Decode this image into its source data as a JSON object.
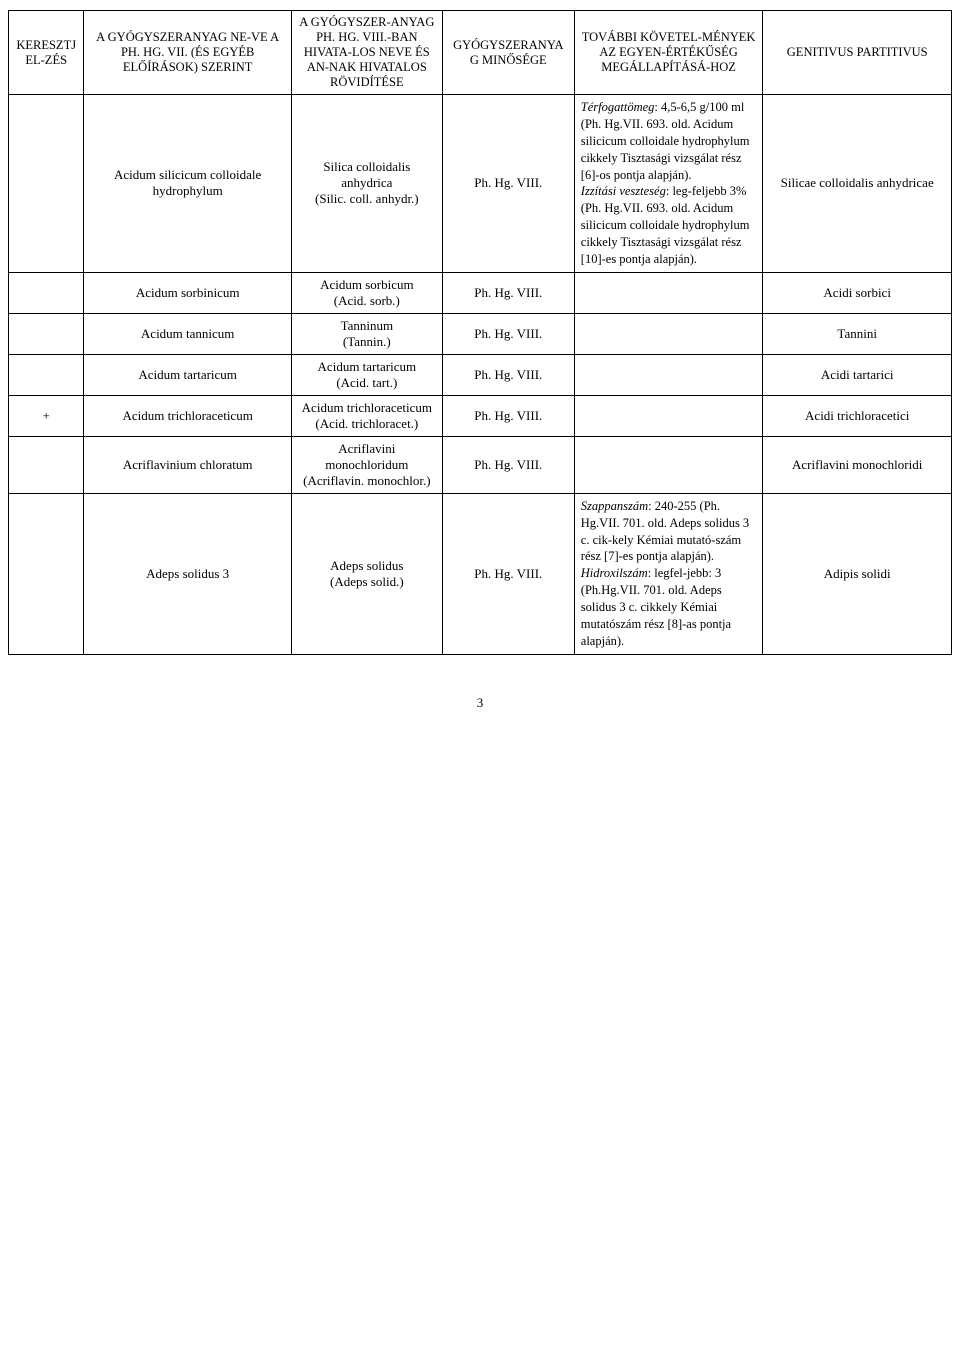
{
  "header": {
    "col1": "KERESZTJEL-ZÉS",
    "col2": "A GYÓGYSZERANYAG NE-VE A PH. HG. VII. (ÉS EGYÉB ELŐÍRÁSOK) SZERINT",
    "col3": "A GYÓGYSZER-ANYAG PH. HG. VIII.-BAN HIVATA-LOS NEVE ÉS AN-NAK HIVATALOS RÖVIDÍTÉSE",
    "col4": "GYÓGYSZERANYAG MINŐSÉGE",
    "col5": "TOVÁBBI KÖVETEL-MÉNYEK AZ EGYEN-ÉRTÉKŰSÉG MEGÁLLAPÍTÁSÁ-HOZ",
    "col6": "GENITIVUS PARTITIVUS"
  },
  "rows": [
    {
      "cross": "",
      "name": "Acidum silicicum colloidale hydrophylum",
      "abbrev": "Silica colloidalis anhydrica\n(Silic. coll. anhydr.)",
      "quality": "Ph. Hg. VIII.",
      "req_html": "<span class=\"italic\">Térfogattömeg</span>: 4,5-6,5 g/100 ml (Ph. Hg.VII. 693. old. Acidum silicicum colloidale hydrophylum cikkely Tisztasági vizsgálat rész [6]-os pontja alapján).<br><span class=\"italic\">Izzítási veszteség</span>: leg-feljebb 3% (Ph. Hg.VII. 693. old. Acidum silicicum colloidale hydrophylum cikkely Tisztasági vizsgálat rész [10]-es pontja alapján).",
      "gen": "Silicae colloidalis anhydricae"
    },
    {
      "cross": "",
      "name": "Acidum sorbinicum",
      "abbrev": "Acidum sorbicum\n(Acid. sorb.)",
      "quality": "Ph. Hg. VIII.",
      "req_html": "",
      "gen": "Acidi sorbici"
    },
    {
      "cross": "",
      "name": "Acidum tannicum",
      "abbrev": "Tanninum\n(Tannin.)",
      "quality": "Ph. Hg. VIII.",
      "req_html": "",
      "gen": "Tannini"
    },
    {
      "cross": "",
      "name": "Acidum tartaricum",
      "abbrev": "Acidum tartaricum\n(Acid. tart.)",
      "quality": "Ph. Hg. VIII.",
      "req_html": "",
      "gen": "Acidi tartarici"
    },
    {
      "cross": "+",
      "name": "Acidum trichloraceticum",
      "abbrev": "Acidum trichloraceticum\n(Acid. trichloracet.)",
      "quality": "Ph. Hg. VIII.",
      "req_html": "",
      "gen": "Acidi trichloracetici"
    },
    {
      "cross": "",
      "name": "Acriflavinium chloratum",
      "abbrev": "Acriflavini monochloridum\n(Acriflavin. monochlor.)",
      "quality": "Ph. Hg. VIII.",
      "req_html": "",
      "gen": "Acriflavini monochloridi"
    },
    {
      "cross": "",
      "name": "Adeps solidus 3",
      "abbrev": "Adeps solidus\n(Adeps solid.)",
      "quality": "Ph. Hg. VIII.",
      "req_html": "<span class=\"italic\">Szappanszám</span>: 240-255 (Ph. Hg.VII. 701. old. Adeps solidus 3 c. cik-kely Kémiai mutató-szám rész [7]-es pontja alapján).<br><span class=\"italic\">Hidroxilszám</span>: legfel-jebb: 3 (Ph.Hg.VII. 701. old. Adeps solidus 3 c. cikkely Kémiai mutatószám rész [8]-as pontja alapján).",
      "gen": "Adipis solidi"
    }
  ],
  "page_number": "3"
}
